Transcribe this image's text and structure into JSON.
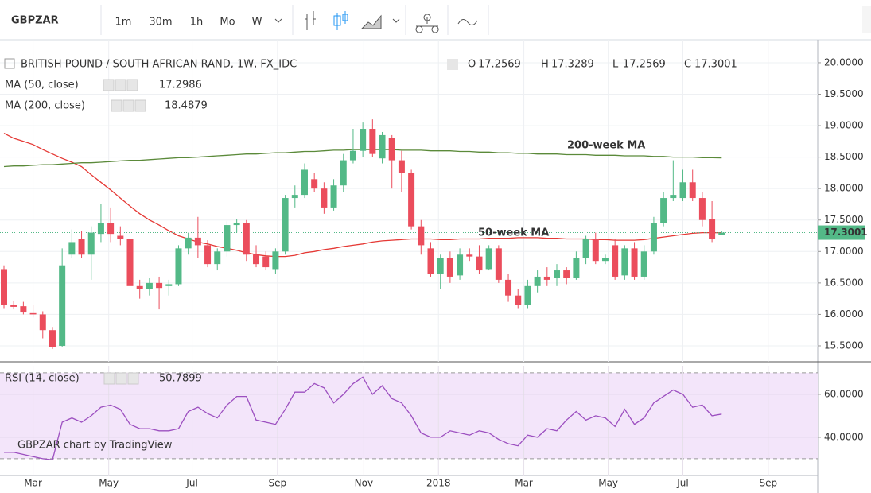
{
  "toolbar": {
    "symbol": "GBPZAR",
    "intervals": [
      "1m",
      "30m",
      "1h",
      "Mo",
      "W"
    ],
    "active_interval": "W"
  },
  "watermark": "GBPZAR chart by TradingView",
  "chart_data": [
    {
      "type": "candlestick",
      "title": "BRITISH POUND / SOUTH AFRICAN RAND, 1W, FX_IDC",
      "ohlc_labels": [
        "O",
        "H",
        "L",
        "C"
      ],
      "up_color": "#53b987",
      "down_color": "#eb4d5c",
      "open": [
        16.72,
        16.15,
        16.13,
        16.02,
        16.0,
        15.75,
        15.5,
        16.95,
        17.2,
        16.95,
        17.28,
        17.45,
        17.25,
        17.2,
        16.45,
        16.4,
        16.5,
        16.45,
        16.48,
        17.05,
        17.22,
        17.1,
        16.8,
        17.0,
        17.42,
        17.45,
        16.95,
        16.92,
        16.72,
        17.0,
        17.85,
        17.9,
        18.15,
        18.0,
        17.7,
        18.05,
        18.45,
        18.6,
        18.95,
        18.48,
        18.8,
        18.45,
        18.25,
        17.4,
        17.05,
        16.65,
        16.9,
        16.62,
        16.95,
        16.92,
        16.72,
        17.05,
        16.55,
        16.3,
        16.15,
        16.45,
        16.6,
        16.58,
        16.7,
        16.58,
        16.9,
        17.2,
        16.85,
        17.1,
        16.62,
        17.05,
        16.6,
        17.0,
        17.45,
        17.85,
        17.85,
        18.1,
        17.85,
        17.52,
        17.2569
      ],
      "high": [
        16.78,
        16.22,
        16.2,
        16.15,
        16.05,
        15.8,
        17.05,
        17.35,
        17.32,
        17.4,
        17.75,
        17.7,
        17.4,
        17.28,
        16.55,
        16.58,
        16.6,
        16.55,
        17.1,
        17.3,
        17.55,
        17.18,
        17.05,
        17.48,
        17.52,
        17.5,
        17.1,
        17.0,
        17.05,
        17.9,
        18.05,
        18.4,
        18.25,
        18.1,
        18.15,
        18.55,
        18.95,
        19.05,
        19.1,
        18.9,
        18.85,
        18.6,
        18.3,
        17.5,
        17.15,
        16.95,
        17.0,
        17.05,
        17.05,
        17.1,
        17.1,
        17.1,
        16.65,
        16.4,
        16.55,
        16.7,
        16.75,
        16.8,
        16.75,
        17.0,
        17.25,
        17.3,
        16.95,
        17.2,
        17.1,
        17.15,
        17.1,
        17.55,
        17.95,
        18.45,
        18.3,
        18.3,
        17.95,
        17.8,
        17.3289
      ],
      "low": [
        16.1,
        16.08,
        16.0,
        15.95,
        15.62,
        15.45,
        15.48,
        16.9,
        16.9,
        16.55,
        17.15,
        17.15,
        17.1,
        16.4,
        16.25,
        16.3,
        16.08,
        16.3,
        16.45,
        16.95,
        16.9,
        16.75,
        16.7,
        16.92,
        17.3,
        16.85,
        16.75,
        16.7,
        16.65,
        16.95,
        17.7,
        17.85,
        17.95,
        17.6,
        17.65,
        17.95,
        18.4,
        18.5,
        18.5,
        18.4,
        18.0,
        17.95,
        17.35,
        16.95,
        16.6,
        16.4,
        16.5,
        16.55,
        16.85,
        16.65,
        16.7,
        16.5,
        16.2,
        16.1,
        16.1,
        16.35,
        16.45,
        16.45,
        16.48,
        16.55,
        16.8,
        16.8,
        16.8,
        16.55,
        16.55,
        16.55,
        16.55,
        16.95,
        17.4,
        17.8,
        17.8,
        17.8,
        17.4,
        17.15,
        17.2569
      ],
      "close": [
        16.15,
        16.12,
        16.03,
        16.0,
        15.75,
        15.48,
        16.78,
        17.15,
        16.95,
        17.3,
        17.45,
        17.28,
        17.2,
        16.45,
        16.4,
        16.5,
        16.42,
        16.48,
        17.05,
        17.22,
        17.1,
        16.8,
        17.0,
        17.42,
        17.45,
        16.95,
        16.8,
        16.75,
        17.0,
        17.85,
        17.9,
        18.3,
        18.0,
        17.7,
        18.05,
        18.45,
        18.6,
        18.95,
        18.55,
        18.85,
        18.45,
        18.25,
        17.4,
        17.1,
        16.65,
        16.9,
        16.6,
        16.95,
        16.92,
        16.7,
        17.05,
        16.55,
        16.3,
        16.15,
        16.45,
        16.6,
        16.55,
        16.7,
        16.58,
        16.9,
        17.2,
        16.85,
        16.9,
        16.6,
        17.05,
        16.6,
        17.0,
        17.45,
        17.85,
        17.9,
        18.1,
        17.85,
        17.5,
        17.2,
        17.3001
      ],
      "series": [
        {
          "name": "MA (50, close)",
          "color": "#e53935",
          "values": [
            18.88,
            18.8,
            18.75,
            18.7,
            18.62,
            18.55,
            18.48,
            18.42,
            18.35,
            18.22,
            18.1,
            17.98,
            17.85,
            17.72,
            17.6,
            17.5,
            17.42,
            17.33,
            17.25,
            17.2,
            17.15,
            17.12,
            17.08,
            17.05,
            17.02,
            16.98,
            16.95,
            16.93,
            16.92,
            16.92,
            16.94,
            16.98,
            17.0,
            17.03,
            17.05,
            17.08,
            17.1,
            17.12,
            17.15,
            17.17,
            17.18,
            17.19,
            17.2,
            17.2,
            17.2,
            17.19,
            17.19,
            17.2,
            17.2,
            17.2,
            17.21,
            17.21,
            17.21,
            17.22,
            17.22,
            17.22,
            17.21,
            17.21,
            17.2,
            17.2,
            17.2,
            17.19,
            17.19,
            17.18,
            17.18,
            17.18,
            17.19,
            17.21,
            17.23,
            17.25,
            17.27,
            17.29,
            17.3,
            17.3,
            17.2986
          ]
        },
        {
          "name": "MA (200, close)",
          "color": "#5b8a3a",
          "values": [
            18.35,
            18.36,
            18.36,
            18.37,
            18.38,
            18.38,
            18.39,
            18.4,
            18.41,
            18.41,
            18.42,
            18.43,
            18.44,
            18.45,
            18.45,
            18.46,
            18.47,
            18.48,
            18.49,
            18.49,
            18.5,
            18.51,
            18.52,
            18.53,
            18.54,
            18.55,
            18.55,
            18.56,
            18.57,
            18.57,
            18.58,
            18.59,
            18.59,
            18.6,
            18.61,
            18.61,
            18.62,
            18.62,
            18.62,
            18.62,
            18.62,
            18.61,
            18.61,
            18.61,
            18.6,
            18.6,
            18.6,
            18.59,
            18.59,
            18.58,
            18.58,
            18.57,
            18.57,
            18.56,
            18.56,
            18.55,
            18.55,
            18.55,
            18.54,
            18.54,
            18.54,
            18.53,
            18.53,
            18.53,
            18.52,
            18.52,
            18.52,
            18.51,
            18.51,
            18.5,
            18.5,
            18.5,
            18.49,
            18.49,
            18.4879
          ]
        }
      ],
      "annotations": [
        "200-week MA",
        "50-week MA"
      ],
      "xlim": [
        -0.41,
        83.9
      ],
      "xticks": [
        {
          "value": 3.0,
          "label": "Mar"
        },
        {
          "value": 10.8,
          "label": "May"
        },
        {
          "value": 19.4,
          "label": "Jul"
        },
        {
          "value": 28.2,
          "label": "Sep"
        },
        {
          "value": 37.1,
          "label": "Nov"
        },
        {
          "value": 44.8,
          "label": "2018"
        },
        {
          "value": 53.6,
          "label": "Mar"
        },
        {
          "value": 62.3,
          "label": "May"
        },
        {
          "value": 70.0,
          "label": "Jul"
        },
        {
          "value": 78.8,
          "label": "Sep"
        }
      ],
      "ylim": [
        15.247,
        20.29
      ],
      "yticks": [
        {
          "value": 15.5,
          "label": "15.5000"
        },
        {
          "value": 16,
          "label": "16.0000"
        },
        {
          "value": 16.5,
          "label": "16.5000"
        },
        {
          "value": 17,
          "label": "17.0000"
        },
        {
          "value": 17.5,
          "label": "17.5000"
        },
        {
          "value": 18,
          "label": "18.0000"
        },
        {
          "value": 18.5,
          "label": "18.5000"
        },
        {
          "value": 19,
          "label": "19.0000"
        },
        {
          "value": 19.5,
          "label": "19.5000"
        },
        {
          "value": 20,
          "label": "20.0000"
        }
      ],
      "grid": true
    },
    {
      "type": "line",
      "series": [
        {
          "name": "RSI (14, close)",
          "color": "#9c4fc0",
          "values": [
            33,
            33,
            32,
            31,
            30,
            29.5,
            47,
            49,
            47,
            50,
            54,
            55,
            53,
            46,
            44,
            44,
            43,
            43,
            44,
            52,
            54,
            51,
            49,
            55,
            59,
            59,
            48,
            47,
            46,
            53,
            61,
            61,
            65,
            63,
            56,
            60,
            65,
            68,
            60,
            64,
            58,
            56,
            50,
            42,
            40,
            40,
            43,
            42,
            41,
            43,
            42,
            39,
            37,
            36,
            41,
            40,
            44,
            43,
            48,
            52,
            48,
            50,
            49,
            45,
            53,
            46,
            49,
            56,
            59,
            62,
            60,
            54,
            55,
            50,
            50.7899
          ]
        }
      ],
      "band": [
        30,
        70
      ],
      "band_color": "#f3e5fa",
      "ylim": [
        22.2,
        73.3
      ],
      "yticks": [
        {
          "value": 40,
          "label": "40.0000"
        },
        {
          "value": 60,
          "label": "60.0000"
        }
      ],
      "grid": true
    }
  ]
}
